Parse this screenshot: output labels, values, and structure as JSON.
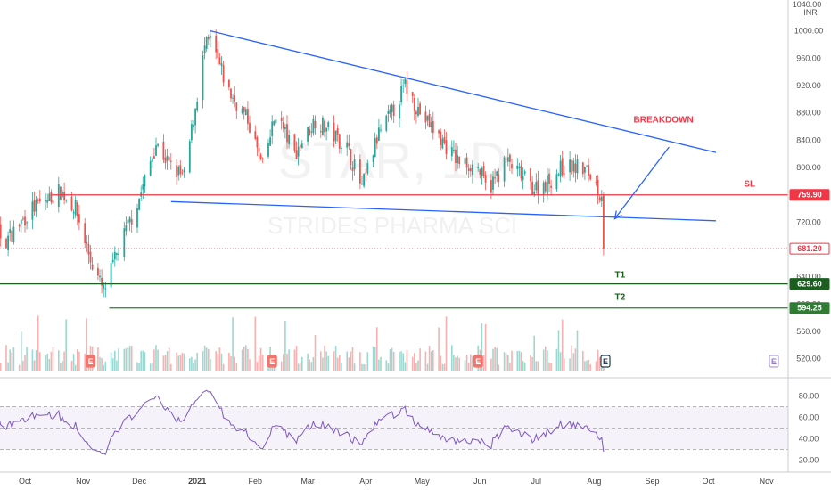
{
  "chart_data": {
    "type": "candlestick",
    "watermark": {
      "symbol": "STAR, 1D",
      "name": "STRIDES PHARMA SCI"
    },
    "currency": "INR",
    "price_axis": {
      "min": 500,
      "max": 1040,
      "ticks": [
        520,
        560,
        600,
        640,
        680,
        720,
        760,
        800,
        840,
        880,
        920,
        960,
        1000
      ],
      "top_label": "1040.00"
    },
    "x_labels": [
      "Oct",
      "Nov",
      "Dec",
      "2021",
      "Feb",
      "Mar",
      "Apr",
      "May",
      "Jun",
      "Jul",
      "Aug",
      "Sep",
      "Oct",
      "Nov"
    ],
    "x_start": "2020-09-01",
    "anchors": [
      [
        "2020-09-01",
        700
      ],
      [
        "2020-09-10",
        745
      ],
      [
        "2020-09-20",
        690
      ],
      [
        "2020-10-05",
        740
      ],
      [
        "2020-10-20",
        765
      ],
      [
        "2020-10-28",
        740
      ],
      [
        "2020-11-05",
        665
      ],
      [
        "2020-11-12",
        618
      ],
      [
        "2020-11-20",
        680
      ],
      [
        "2020-12-01",
        755
      ],
      [
        "2020-12-10",
        835
      ],
      [
        "2020-12-18",
        800
      ],
      [
        "2020-12-25",
        785
      ],
      [
        "2021-01-05",
        975
      ],
      [
        "2021-01-08",
        985
      ],
      [
        "2021-01-18",
        910
      ],
      [
        "2021-01-28",
        870
      ],
      [
        "2021-02-05",
        800
      ],
      [
        "2021-02-12",
        880
      ],
      [
        "2021-02-22",
        820
      ],
      [
        "2021-03-05",
        870
      ],
      [
        "2021-03-12",
        855
      ],
      [
        "2021-03-22",
        830
      ],
      [
        "2021-03-30",
        770
      ],
      [
        "2021-04-08",
        850
      ],
      [
        "2021-04-15",
        880
      ],
      [
        "2021-04-22",
        920
      ],
      [
        "2021-04-30",
        880
      ],
      [
        "2021-05-10",
        845
      ],
      [
        "2021-05-20",
        810
      ],
      [
        "2021-05-31",
        800
      ],
      [
        "2021-06-05",
        765
      ],
      [
        "2021-06-15",
        810
      ],
      [
        "2021-06-22",
        790
      ],
      [
        "2021-06-30",
        770
      ],
      [
        "2021-07-08",
        780
      ],
      [
        "2021-07-15",
        800
      ],
      [
        "2021-07-25",
        800
      ],
      [
        "2021-08-01",
        785
      ],
      [
        "2021-08-04",
        760
      ],
      [
        "2021-08-05",
        765
      ],
      [
        "2021-08-06",
        681.2
      ]
    ],
    "earnings_dates": [
      "2020-11-05",
      "2021-02-10",
      "2021-05-31",
      "2021-08-07",
      "2021-11-05"
    ],
    "rsi_axis": {
      "min": 12,
      "max": 92,
      "ticks": [
        20,
        40,
        60,
        80
      ],
      "upper_band": 70,
      "lower_band": 30,
      "mid": 50
    },
    "levels": [
      {
        "name": "SL",
        "value": 759.9,
        "label": "759.90",
        "color": "#f23645",
        "start": "2020-10-15"
      },
      {
        "name": "T1",
        "value": 629.6,
        "label": "629.60",
        "color": "#1b5e20",
        "start": "2020-08-20"
      },
      {
        "name": "T2",
        "value": 594.25,
        "label": "594.25",
        "color": "#2e7d32",
        "start": "2020-11-15"
      }
    ],
    "last_price": {
      "value": 681.2,
      "label": "681.20",
      "color": "#f23645"
    },
    "trendlines": [
      {
        "from": [
          "2021-01-08",
          1000
        ],
        "to": [
          "2021-10-05",
          822
        ],
        "color": "#2962ff"
      },
      {
        "from": [
          "2020-12-18",
          750
        ],
        "to": [
          "2021-10-05",
          722
        ],
        "color": "#2962ff"
      }
    ],
    "arrow": {
      "from": [
        "2021-09-10",
        830
      ],
      "to": [
        "2021-08-12",
        725
      ],
      "color": "#2962ff"
    },
    "annotations": [
      {
        "text": "BREAKDOWN",
        "at": [
          "2021-08-22",
          866
        ],
        "color": "#f23645"
      },
      {
        "text": "SL",
        "at": [
          "2021-10-20",
          772
        ],
        "color": "#f23645"
      },
      {
        "text": "T1",
        "at": [
          "2021-08-12",
          639
        ],
        "color": "#1b5e20"
      },
      {
        "text": "T2",
        "at": [
          "2021-08-12",
          606
        ],
        "color": "#1b5e20"
      }
    ]
  }
}
